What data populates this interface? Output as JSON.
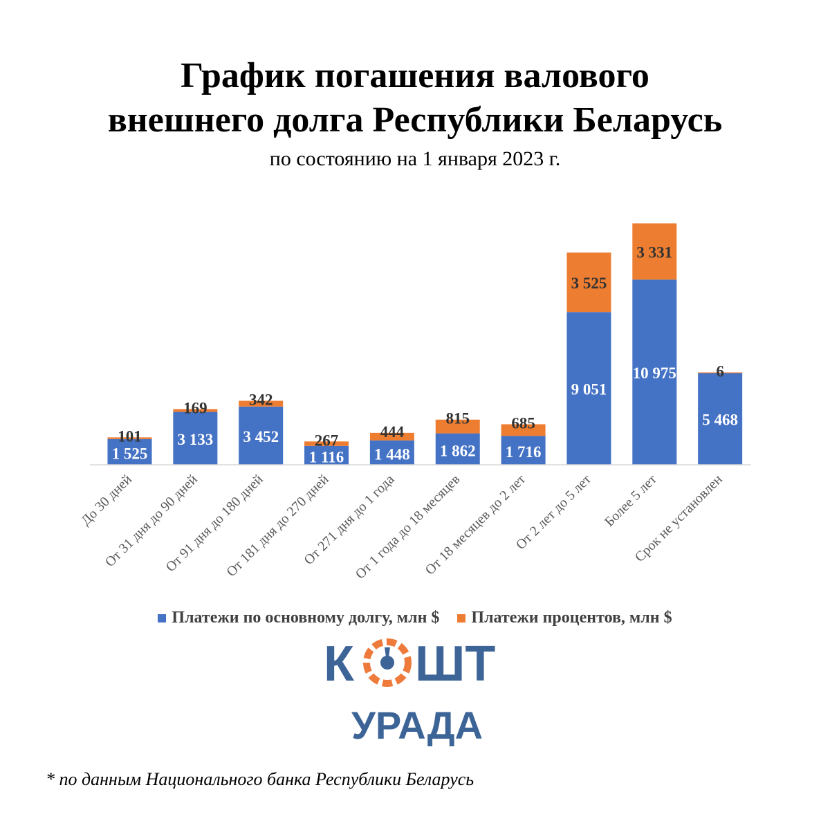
{
  "title_line1": "График погашения валового",
  "title_line2": "внешнего долга Республики Беларусь",
  "subtitle": "по состоянию на 1 января 2023 г.",
  "chart_data": {
    "type": "bar",
    "stacked": true,
    "categories": [
      "До 30 дней",
      "От 31 дня до 90 дней",
      "От 91 дня до 180 дней",
      "От 181 дня до 270 дней",
      "От 271 дня до 1 года",
      "От 1 года до 18 месяцев",
      "От 18 месяцев до 2 лет",
      "От 2 лет до 5 лет",
      "Более 5 лет",
      "Срок не установлен"
    ],
    "series": [
      {
        "name": "Платежи по основному долгу, млн $",
        "color": "#4472C4",
        "values": [
          1525,
          3133,
          3452,
          1116,
          1448,
          1862,
          1716,
          9051,
          10975,
          5468
        ],
        "labels": [
          "1 525",
          "3 133",
          "3 452",
          "1 116",
          "1 448",
          "1 862",
          "1 716",
          "9 051",
          "10 975",
          "5 468"
        ]
      },
      {
        "name": "Платежи процентов, млн $",
        "color": "#ED7D31",
        "values": [
          101,
          169,
          342,
          267,
          444,
          815,
          685,
          3525,
          3331,
          6
        ],
        "labels": [
          "101",
          "169",
          "342",
          "267",
          "444",
          "815",
          "685",
          "3 525",
          "3 331",
          "6"
        ]
      }
    ],
    "ylim": [
      0,
      14306
    ],
    "grid": false,
    "legend_position": "bottom"
  },
  "logo": {
    "word_top_left": "К",
    "word_top_right": "ШТ",
    "word_bottom": "УРАДА",
    "blue": "#3C6497",
    "orange": "#EE7A3B"
  },
  "footnote": "* по данным Национального банка Республики Беларусь"
}
